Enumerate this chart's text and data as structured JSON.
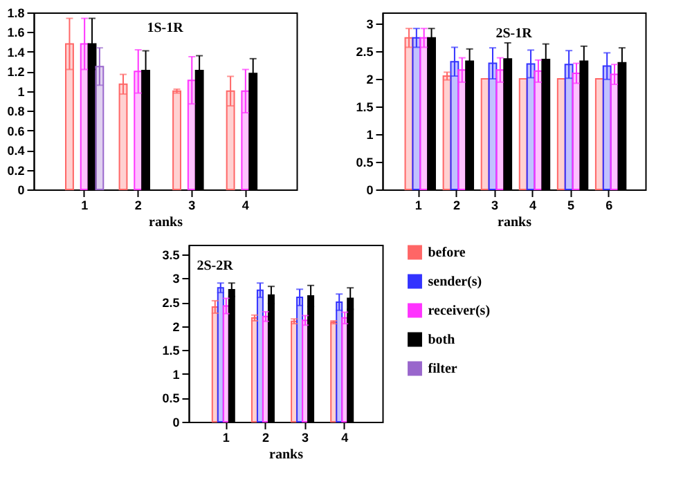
{
  "chart_data": [
    {
      "type": "bar",
      "title": "1S-1R",
      "xlabel": "ranks",
      "categories": [
        "1",
        "2",
        "3",
        "4"
      ],
      "ylim": [
        0,
        1.8
      ],
      "yticks": [
        0,
        0.2,
        0.4,
        0.6,
        0.8,
        1,
        1.2,
        1.4,
        1.6,
        1.8
      ],
      "legend": false,
      "grid": false,
      "series": [
        {
          "color": "#ff6666",
          "values": [
            1.48,
            1.07,
            1.0,
            1.0
          ],
          "errors": [
            [
              1.22,
              1.74
            ],
            [
              0.97,
              1.17
            ],
            [
              0.98,
              1.02
            ],
            [
              0.85,
              1.15
            ]
          ]
        },
        {
          "color": "#3333ff",
          "values": [
            null,
            null,
            null,
            null
          ],
          "errors": [
            null,
            null,
            null,
            null
          ]
        },
        {
          "color": "#ff33ff",
          "values": [
            1.48,
            1.2,
            1.11,
            1.0
          ],
          "errors": [
            [
              1.22,
              1.74
            ],
            [
              0.98,
              1.42
            ],
            [
              0.87,
              1.35
            ],
            [
              0.78,
              1.22
            ]
          ]
        },
        {
          "color": "#000000",
          "values": [
            1.48,
            1.21,
            1.21,
            1.18
          ],
          "errors": [
            [
              1.22,
              1.74
            ],
            [
              1.01,
              1.41
            ],
            [
              1.06,
              1.36
            ],
            [
              1.03,
              1.33
            ]
          ]
        },
        {
          "color": "#9966cc",
          "values": [
            1.25,
            null,
            null,
            null
          ],
          "errors": [
            [
              1.06,
              1.44
            ],
            null,
            null,
            null
          ]
        }
      ]
    },
    {
      "type": "bar",
      "title": "2S-1R",
      "xlabel": "ranks",
      "categories": [
        "1",
        "2",
        "3",
        "4",
        "5",
        "6"
      ],
      "ylim": [
        0,
        3.2
      ],
      "yticks": [
        0,
        0.5,
        1,
        1.5,
        2,
        2.5,
        3
      ],
      "legend": false,
      "grid": false,
      "series": [
        {
          "color": "#ff6666",
          "values": [
            2.74,
            2.05,
            2.0,
            2.0,
            2.0,
            2.0
          ],
          "errors": [
            [
              2.57,
              2.91
            ],
            [
              1.98,
              2.12
            ],
            null,
            null,
            null,
            null
          ]
        },
        {
          "color": "#3333ff",
          "values": [
            2.74,
            2.31,
            2.28,
            2.27,
            2.26,
            2.23
          ],
          "errors": [
            [
              2.57,
              2.91
            ],
            [
              2.05,
              2.57
            ],
            [
              2.0,
              2.56
            ],
            [
              2.02,
              2.52
            ],
            [
              2.01,
              2.51
            ],
            [
              1.99,
              2.47
            ]
          ]
        },
        {
          "color": "#ff33ff",
          "values": [
            2.74,
            2.16,
            2.16,
            2.14,
            2.1,
            2.08
          ],
          "errors": [
            [
              2.57,
              2.91
            ],
            [
              1.94,
              2.38
            ],
            [
              1.94,
              2.38
            ],
            [
              1.94,
              2.34
            ],
            [
              1.92,
              2.28
            ],
            [
              1.9,
              2.26
            ]
          ]
        },
        {
          "color": "#000000",
          "values": [
            2.74,
            2.32,
            2.36,
            2.35,
            2.32,
            2.29
          ],
          "errors": [
            [
              2.57,
              2.91
            ],
            [
              2.1,
              2.54
            ],
            [
              2.07,
              2.65
            ],
            [
              2.07,
              2.63
            ],
            [
              2.05,
              2.59
            ],
            [
              2.02,
              2.56
            ]
          ]
        }
      ]
    },
    {
      "type": "bar",
      "title": "2S-2R",
      "xlabel": "ranks",
      "categories": [
        "1",
        "2",
        "3",
        "4"
      ],
      "ylim": [
        0,
        3.7
      ],
      "yticks": [
        0,
        0.5,
        1,
        1.5,
        2,
        2.5,
        3,
        3.5
      ],
      "legend": "right",
      "grid": false,
      "series": [
        {
          "name": "before",
          "color": "#ff6666",
          "values": [
            2.4,
            2.17,
            2.1,
            2.08
          ],
          "errors": [
            [
              2.27,
              2.53
            ],
            [
              2.11,
              2.23
            ],
            [
              2.05,
              2.15
            ],
            [
              2.05,
              2.11
            ]
          ]
        },
        {
          "name": "sender(s)",
          "color": "#3333ff",
          "values": [
            2.8,
            2.75,
            2.6,
            2.5
          ],
          "errors": [
            [
              2.7,
              2.9
            ],
            [
              2.6,
              2.9
            ],
            [
              2.43,
              2.77
            ],
            [
              2.33,
              2.67
            ]
          ]
        },
        {
          "name": "receiver(s)",
          "color": "#ff33ff",
          "values": [
            2.42,
            2.2,
            2.12,
            2.17
          ],
          "errors": [
            [
              2.26,
              2.58
            ],
            [
              2.1,
              2.3
            ],
            [
              2.02,
              2.22
            ],
            [
              2.05,
              2.29
            ]
          ]
        },
        {
          "name": "both",
          "color": "#000000",
          "values": [
            2.76,
            2.65,
            2.63,
            2.58
          ],
          "errors": [
            [
              2.62,
              2.9
            ],
            [
              2.47,
              2.83
            ],
            [
              2.41,
              2.85
            ],
            [
              2.35,
              2.8
            ]
          ]
        },
        {
          "name": "filter",
          "color": "#9966cc",
          "values": [
            null,
            null,
            null,
            null
          ],
          "errors": [
            null,
            null,
            null,
            null
          ]
        }
      ]
    }
  ]
}
